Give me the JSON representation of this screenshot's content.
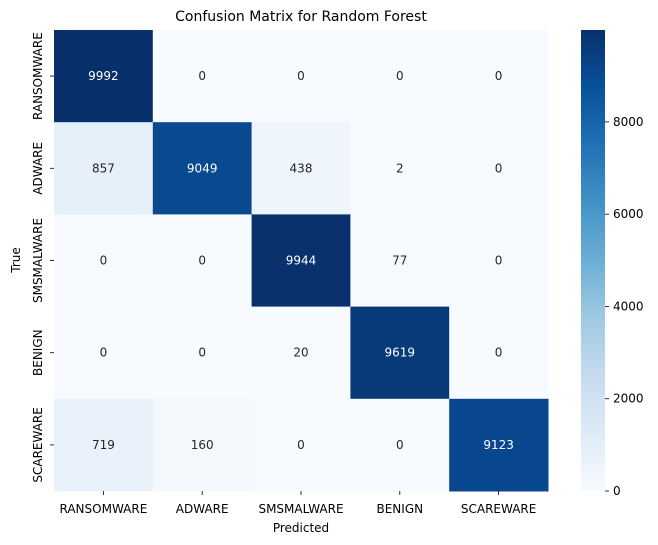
{
  "chart_data": {
    "type": "heatmap",
    "title": "Confusion Matrix for Random Forest",
    "xlabel": "Predicted",
    "ylabel": "True",
    "x_categories": [
      "RANSOMWARE",
      "ADWARE",
      "SMSMALWARE",
      "BENIGN",
      "SCAREWARE"
    ],
    "y_categories": [
      "RANSOMWARE",
      "ADWARE",
      "SMSMALWARE",
      "BENIGN",
      "SCAREWARE"
    ],
    "values": [
      [
        9992,
        0,
        0,
        0,
        0
      ],
      [
        857,
        9049,
        438,
        2,
        0
      ],
      [
        0,
        0,
        9944,
        77,
        0
      ],
      [
        0,
        0,
        20,
        9619,
        0
      ],
      [
        719,
        160,
        0,
        0,
        9123
      ]
    ],
    "colormap": "Blues",
    "colorbar": {
      "range": [
        0,
        9992
      ],
      "ticks": [
        0,
        2000,
        4000,
        6000,
        8000
      ]
    }
  }
}
